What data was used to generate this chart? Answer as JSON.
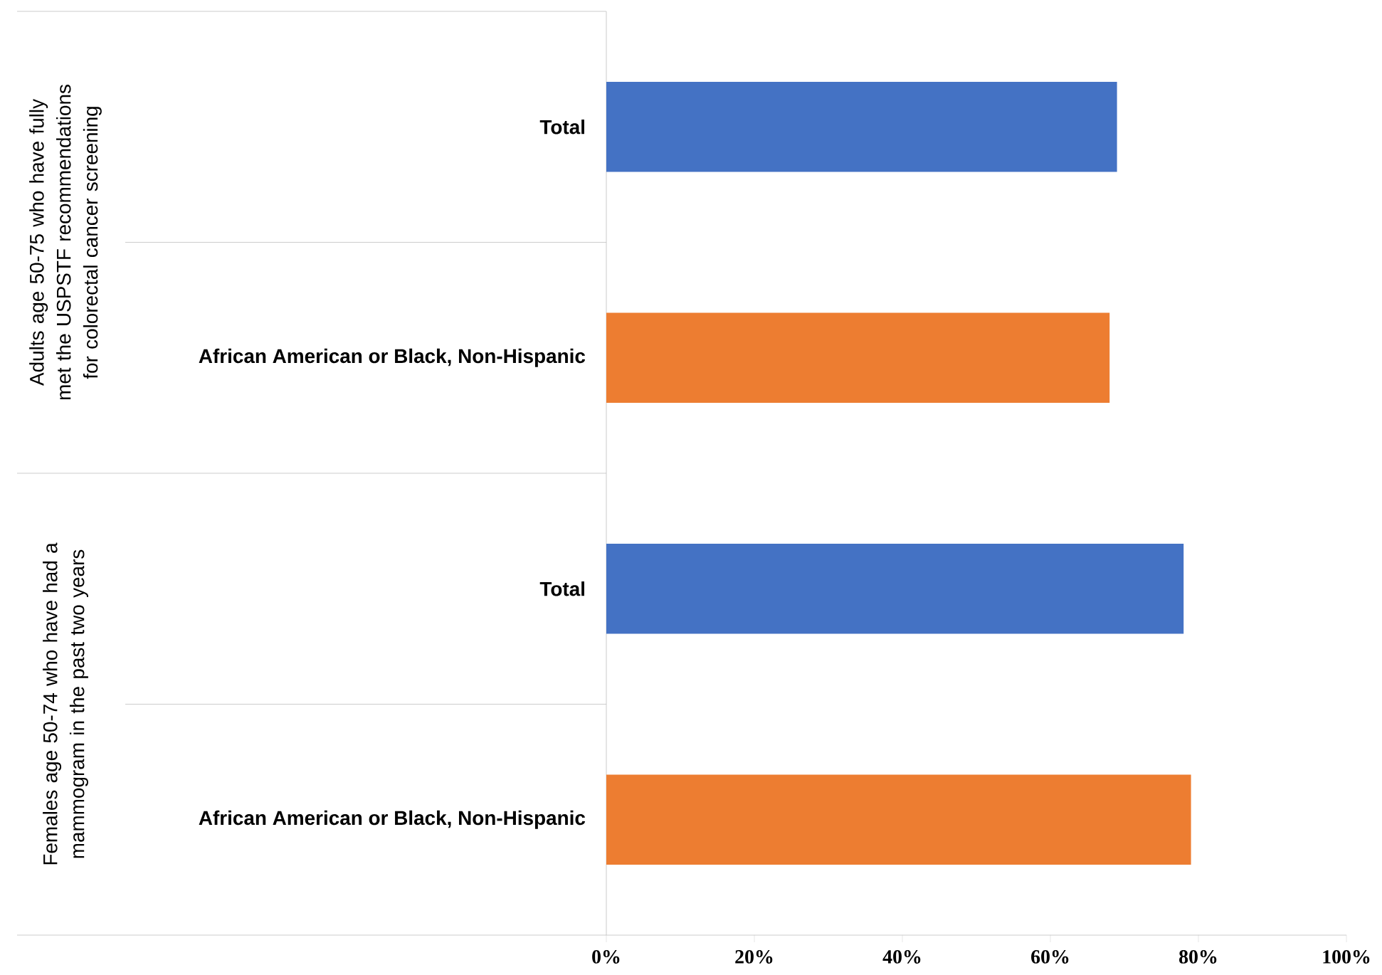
{
  "chart_data": {
    "type": "bar",
    "orientation": "horizontal",
    "categories": [
      "Total",
      "African American or Black, Non-Hispanic",
      "Total",
      "African American or Black, Non-Hispanic"
    ],
    "values": [
      69,
      68,
      78,
      79
    ],
    "colors": [
      "#4472c4",
      "#ed7d31",
      "#4472c4",
      "#ed7d31"
    ],
    "xlim": [
      0,
      100
    ],
    "xticks": [
      {
        "value": 0,
        "label": "0%"
      },
      {
        "value": 20,
        "label": "20%"
      },
      {
        "value": 40,
        "label": "40%"
      },
      {
        "value": 60,
        "label": "60%"
      },
      {
        "value": 80,
        "label": "80%"
      },
      {
        "value": 100,
        "label": "100%"
      }
    ],
    "annotations": [
      "Adults age 50-75 who have fully met the USPSTF recommendations for colorectal cancer screening",
      "Females age 50-74 who have had a mammogram in the past two years"
    ],
    "grid": false
  }
}
